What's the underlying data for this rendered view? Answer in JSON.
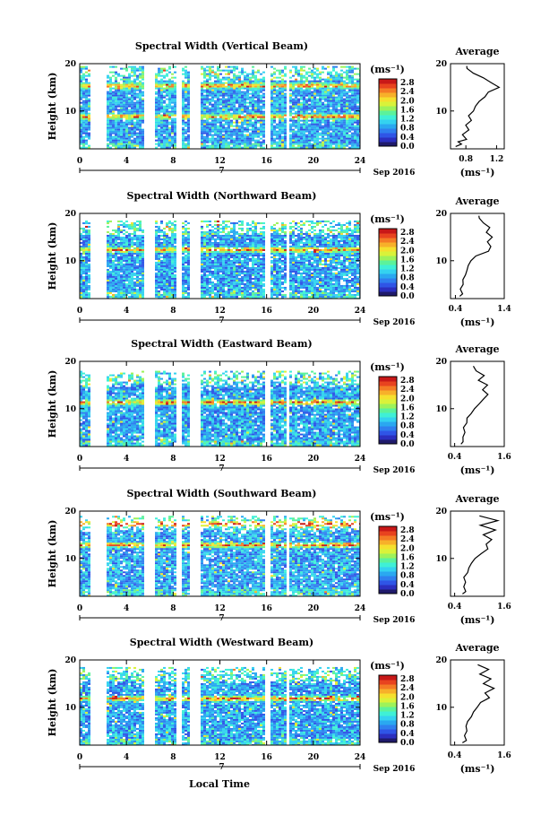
{
  "time_axis": {
    "xlabel": "Local Time",
    "range_hours": [
      0,
      24
    ],
    "ticks": [
      0,
      4,
      8,
      12,
      16,
      20,
      24
    ],
    "day_label": "7",
    "date_label": "Sep 2016"
  },
  "colorbar": {
    "unit": "(ms⁻¹)",
    "range": [
      0,
      2.8
    ],
    "ticks": [
      "2.8",
      "2.4",
      "2.0",
      "1.6",
      "1.2",
      "0.8",
      "0.4",
      "0.0"
    ],
    "colors": [
      "#1f1a6b",
      "#2b2fbf",
      "#2f55e6",
      "#2f7fef",
      "#2aa8f0",
      "#34d2f0",
      "#3ff0d6",
      "#5cf29b",
      "#9df25a",
      "#d9f23a",
      "#f5e02e",
      "#f7b02a",
      "#f47b25",
      "#e8431f",
      "#c81818"
    ]
  },
  "height_axis": {
    "ylabel": "Height (km)",
    "range_km": [
      2,
      20
    ],
    "ticks": [
      10,
      20
    ]
  },
  "average_title": "Average",
  "average_xlabel": "(ms⁻¹)",
  "data_gaps_hours": [
    [
      0.7,
      2.3
    ],
    [
      5.4,
      6.3
    ],
    [
      8.2,
      8.7
    ],
    [
      9.4,
      10.2
    ],
    [
      15.7,
      16.2
    ],
    [
      17.6,
      17.9
    ]
  ],
  "chart_data": [
    {
      "type": "heatmap",
      "title": "Spectral Width (Vertical Beam)",
      "xlabel": "Local Time",
      "ylabel": "Height (km)",
      "xlim": [
        0,
        24
      ],
      "ylim": [
        2,
        20
      ],
      "top_km": 19.5,
      "avg_xlim": [
        0.6,
        1.3
      ],
      "avg_ticks": [
        "0.8",
        "1.2"
      ],
      "avg_profile": {
        "height_km": [
          2.5,
          3,
          3.5,
          4,
          5,
          6,
          7,
          8,
          9,
          10,
          11,
          12,
          13,
          14,
          15,
          16,
          17,
          18,
          19,
          19.5
        ],
        "value": [
          0.68,
          0.74,
          0.7,
          0.8,
          0.76,
          0.85,
          0.8,
          0.86,
          0.84,
          0.9,
          0.92,
          0.98,
          1.04,
          1.1,
          1.22,
          1.14,
          1.02,
          0.9,
          0.82,
          0.8
        ]
      },
      "hot_layers_km": [
        15.5,
        9
      ]
    },
    {
      "type": "heatmap",
      "title": "Spectral Width (Northward Beam)",
      "xlabel": "Local Time",
      "ylabel": "Height (km)",
      "xlim": [
        0,
        24
      ],
      "ylim": [
        2,
        20
      ],
      "top_km": 18.5,
      "avg_xlim": [
        0.3,
        1.4
      ],
      "avg_ticks": [
        "0.4",
        "1.4"
      ],
      "avg_profile": {
        "height_km": [
          2.5,
          3,
          4,
          5,
          6,
          7,
          8,
          9,
          10,
          11,
          12,
          13,
          14,
          15,
          16,
          17,
          18,
          19,
          19.5
        ],
        "value": [
          0.5,
          0.56,
          0.52,
          0.58,
          0.55,
          0.6,
          0.62,
          0.66,
          0.72,
          0.82,
          1.08,
          1.12,
          1.05,
          1.14,
          1.02,
          1.1,
          0.98,
          0.9,
          0.86
        ]
      },
      "hot_layers_km": [
        12.5
      ]
    },
    {
      "type": "heatmap",
      "title": "Spectral Width (Eastward Beam)",
      "xlabel": "Local Time",
      "ylabel": "Height (km)",
      "xlim": [
        0,
        24
      ],
      "ylim": [
        2,
        20
      ],
      "top_km": 18,
      "avg_xlim": [
        0.3,
        1.6
      ],
      "avg_ticks": [
        "0.4",
        "1.6"
      ],
      "avg_profile": {
        "height_km": [
          2.5,
          3,
          4,
          5,
          6,
          7,
          8,
          9,
          10,
          11,
          12,
          13,
          14,
          15,
          16,
          17,
          18,
          19
        ],
        "value": [
          0.55,
          0.62,
          0.58,
          0.64,
          0.6,
          0.68,
          0.72,
          0.78,
          0.86,
          1.0,
          1.12,
          1.22,
          1.1,
          1.2,
          0.98,
          1.1,
          0.92,
          0.85
        ]
      },
      "hot_layers_km": [
        11.5
      ]
    },
    {
      "type": "heatmap",
      "title": "Spectral Width (Southward Beam)",
      "xlabel": "Local Time",
      "ylabel": "Height (km)",
      "xlim": [
        0,
        24
      ],
      "ylim": [
        2,
        20
      ],
      "top_km": 19,
      "avg_xlim": [
        0.3,
        1.6
      ],
      "avg_ticks": [
        "0.4",
        "1.6"
      ],
      "avg_profile": {
        "height_km": [
          2.5,
          3,
          4,
          5,
          6,
          7,
          8,
          9,
          10,
          11,
          12,
          13,
          14,
          15,
          16,
          17,
          18,
          19
        ],
        "value": [
          0.58,
          0.66,
          0.6,
          0.64,
          0.62,
          0.7,
          0.74,
          0.8,
          0.9,
          1.05,
          1.2,
          1.15,
          1.3,
          1.1,
          1.4,
          1.02,
          1.45,
          1.0
        ]
      },
      "hot_layers_km": [
        13,
        17.5
      ]
    },
    {
      "type": "heatmap",
      "title": "Spectral Width (Westward Beam)",
      "xlabel": "Local Time",
      "ylabel": "Height (km)",
      "xlim": [
        0,
        24
      ],
      "ylim": [
        2,
        20
      ],
      "top_km": 18.5,
      "avg_xlim": [
        0.3,
        1.6
      ],
      "avg_ticks": [
        "0.4",
        "1.6"
      ],
      "avg_profile": {
        "height_km": [
          2.5,
          3,
          4,
          5,
          6,
          7,
          8,
          9,
          10,
          11,
          12,
          13,
          14,
          15,
          16,
          17,
          18,
          19
        ],
        "value": [
          0.6,
          0.7,
          0.62,
          0.68,
          0.65,
          0.72,
          0.78,
          0.84,
          0.95,
          1.05,
          1.25,
          1.15,
          1.35,
          1.1,
          1.3,
          1.0,
          1.2,
          0.95
        ]
      },
      "hot_layers_km": [
        12
      ]
    }
  ]
}
